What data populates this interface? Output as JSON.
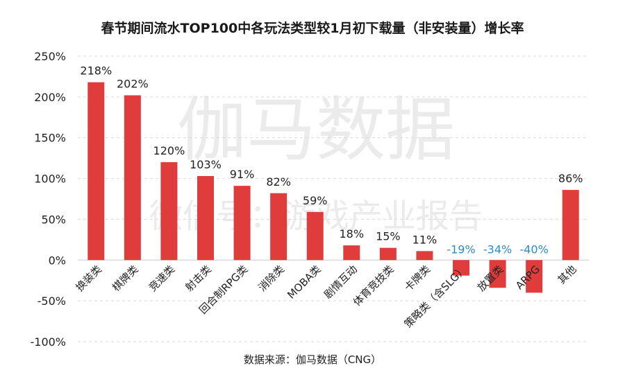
{
  "chart_data": {
    "type": "bar",
    "title": "春节期间流水TOP100中各玩法类型较1月初下载量（非安装量）增长率",
    "categories": [
      "换装类",
      "棋牌类",
      "竞速类",
      "射击类",
      "回合制RPG类",
      "消除类",
      "MOBA类",
      "剧情互动",
      "体育竞技类",
      "卡牌类",
      "策略类（含SLG）",
      "放置类",
      "ARPG",
      "其他"
    ],
    "values": [
      218,
      202,
      120,
      103,
      91,
      82,
      59,
      18,
      15,
      11,
      -19,
      -34,
      -40,
      86
    ],
    "data_labels": [
      "218%",
      "202%",
      "120%",
      "103%",
      "91%",
      "82%",
      "59%",
      "18%",
      "15%",
      "11%",
      "-19%",
      "-34%",
      "-40%",
      "86%"
    ],
    "ylim": [
      -100,
      250
    ],
    "yticks": [
      250,
      200,
      150,
      100,
      50,
      0,
      -50,
      -100
    ],
    "ytick_labels": [
      "250%",
      "200%",
      "150%",
      "100%",
      "50%",
      "0%",
      "-50%",
      "-100%"
    ],
    "xlabel": "",
    "ylabel": "",
    "grid": true,
    "legend": "none",
    "colors": {
      "bar": "#e03c3c",
      "positive_label": "#222222",
      "negative_label": "#2e8bc0"
    }
  },
  "source": "数据来源：伽马数据（CNG）",
  "watermark": {
    "line1": "伽马数据",
    "line2": "微信号：游戏产业报告"
  }
}
